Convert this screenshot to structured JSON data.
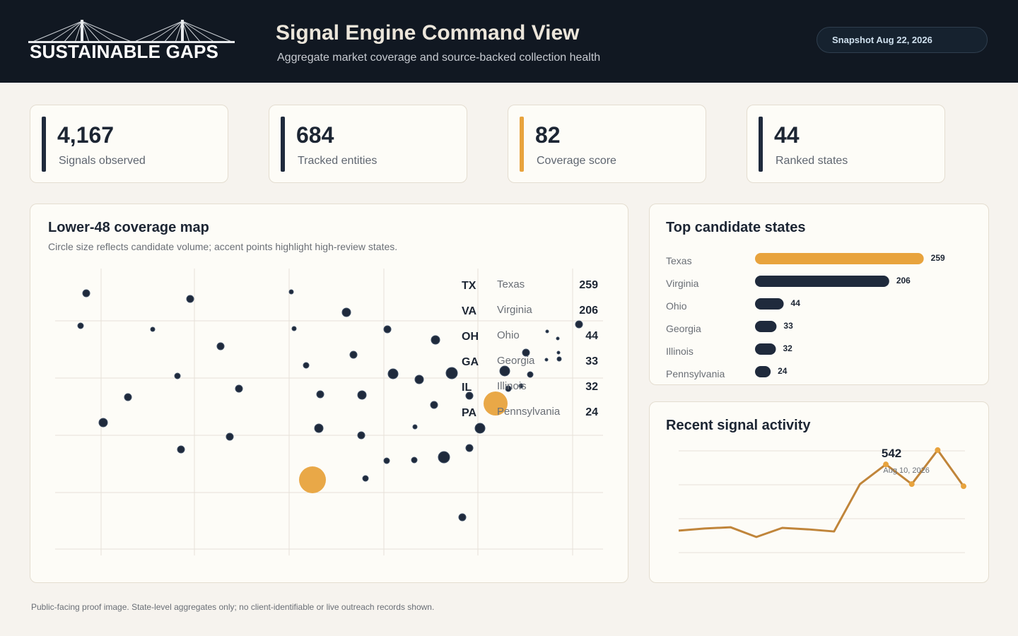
{
  "header": {
    "logo": "SUSTAINABLE GAPS",
    "title": "Signal Engine Command View",
    "subtitle": "Aggregate market coverage and source-backed collection health",
    "snapshot": "Snapshot Aug 22, 2026"
  },
  "kpis": [
    {
      "value": "4,167",
      "label": "Signals observed",
      "accent": "#1f2a3c"
    },
    {
      "value": "684",
      "label": "Tracked entities",
      "accent": "#1f2a3c"
    },
    {
      "value": "82",
      "label": "Coverage score",
      "accent": "#e8a33d"
    },
    {
      "value": "44",
      "label": "Ranked states",
      "accent": "#1f2a3c"
    }
  ],
  "map": {
    "title": "Lower-48 coverage map",
    "subtitle": "Circle size reflects candidate volume; accent points highlight high-review states."
  },
  "chart_data": [
    {
      "type": "bar",
      "title": "Top candidate states",
      "categories": [
        "Texas",
        "Virginia",
        "Ohio",
        "Georgia",
        "Illinois",
        "Pennsylvania"
      ],
      "abbr": [
        "TX",
        "VA",
        "OH",
        "GA",
        "IL",
        "PA"
      ],
      "values": [
        259,
        206,
        44,
        33,
        32,
        24
      ],
      "colors": [
        "#e8a33d",
        "#1f2a3c",
        "#1f2a3c",
        "#1f2a3c",
        "#1f2a3c",
        "#1f2a3c"
      ],
      "xlim": [
        0,
        280
      ]
    },
    {
      "type": "line",
      "title": "Recent signal activity",
      "categories": [
        null,
        null,
        null,
        null,
        null,
        null,
        null,
        null,
        null,
        null,
        null,
        null
      ],
      "values": [
        135,
        148,
        156,
        96,
        152,
        143,
        130,
        421,
        542,
        421,
        630,
        408
      ],
      "color": "#c0853a",
      "ylim": [
        0,
        660
      ],
      "annotation": {
        "value": 542,
        "date": "Aug 10, 2026"
      }
    }
  ],
  "footer": "Public-facing proof image. State-level aggregates only; no client-identifiable or live outreach records shown."
}
